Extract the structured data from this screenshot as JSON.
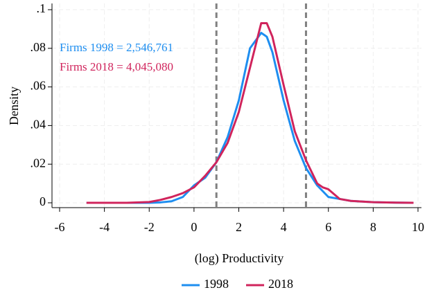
{
  "chart_data": {
    "type": "line",
    "xlabel": "(log) Productivity",
    "ylabel": "Density",
    "x": [
      -4.8,
      -4,
      -3,
      -2,
      -1.5,
      -1,
      -0.5,
      0,
      0.5,
      1,
      1.5,
      2,
      2.5,
      3,
      3.25,
      3.5,
      4,
      4.5,
      5,
      5.5,
      5.75,
      6,
      6.5,
      7,
      8,
      9,
      9.8
    ],
    "series": [
      {
        "name": "1998",
        "color": "#1e8ef0",
        "values": [
          0,
          0,
          0,
          0,
          0.0002,
          0.0008,
          0.003,
          0.009,
          0.013,
          0.021,
          0.034,
          0.053,
          0.08,
          0.088,
          0.086,
          0.078,
          0.053,
          0.032,
          0.018,
          0.009,
          0.006,
          0.003,
          0.002,
          0.001,
          0.0003,
          0.0001,
          0
        ]
      },
      {
        "name": "2018",
        "color": "#d0245c",
        "values": [
          0,
          0,
          0,
          0.0004,
          0.0015,
          0.003,
          0.005,
          0.008,
          0.014,
          0.021,
          0.031,
          0.047,
          0.07,
          0.093,
          0.093,
          0.086,
          0.061,
          0.037,
          0.022,
          0.01,
          0.008,
          0.007,
          0.002,
          0.001,
          0.0003,
          0.0001,
          0
        ]
      }
    ],
    "annotations": [
      {
        "text": "Firms 1998 = 2,546,761",
        "color": "#1e8ef0"
      },
      {
        "text": "Firms 2018 = 4,045,080",
        "color": "#d0245c"
      }
    ],
    "vlines": [
      1,
      5
    ],
    "vline_color": "#808080",
    "xlim": [
      -6,
      10
    ],
    "xticks": [
      -6,
      -4,
      -2,
      0,
      2,
      4,
      6,
      8,
      10
    ],
    "ylim": [
      0,
      0.1
    ],
    "yticks": [
      0,
      {
        "value": 0.02,
        "label": ".02"
      },
      {
        "value": 0.04,
        "label": ".04"
      },
      {
        "value": 0.06,
        "label": ".06"
      },
      {
        "value": 0.08,
        "label": ".08"
      },
      {
        "value": 0.1,
        "label": ".1"
      }
    ],
    "grid": true,
    "legend": "bottom"
  }
}
